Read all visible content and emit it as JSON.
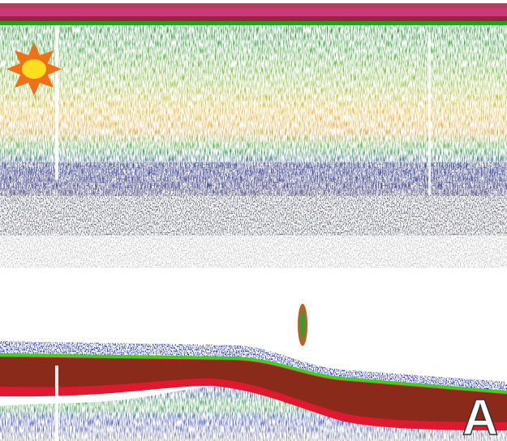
{
  "label": "A"
}
